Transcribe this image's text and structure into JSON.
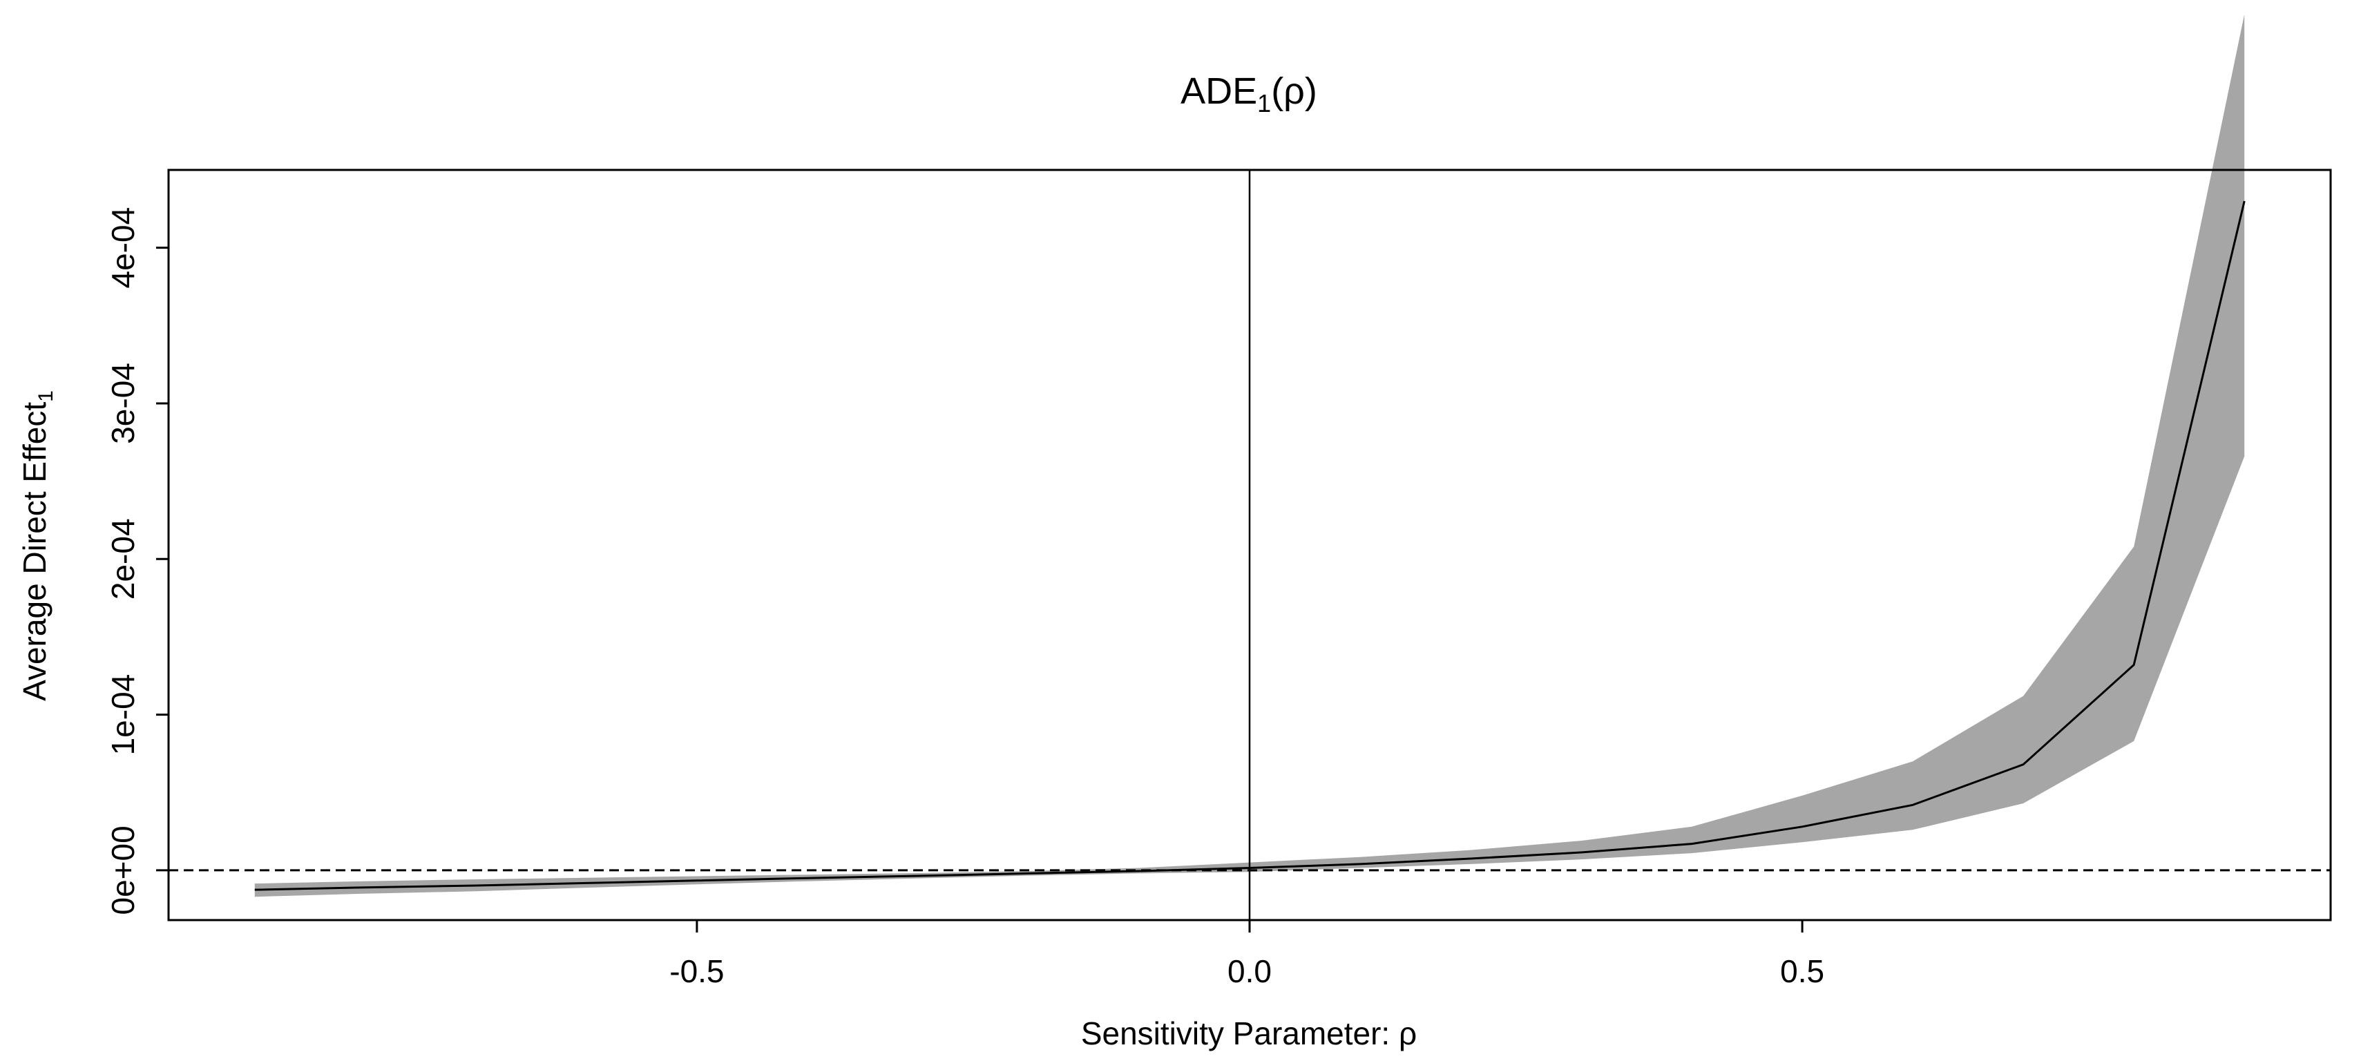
{
  "chart_data": {
    "type": "line",
    "title": "ADE",
    "title_subscript": "1",
    "title_suffix": "(ρ)",
    "xlabel": "Sensitivity Parameter: ρ",
    "ylabel": "Average Direct Effect",
    "ylabel_subscript": "1",
    "xlim": [
      -0.978,
      0.978
    ],
    "ylim": [
      -3.2e-05,
      0.00045
    ],
    "x_ticks": [
      -0.5,
      0.0,
      0.5
    ],
    "x_tick_labels": [
      "-0.5",
      "0.0",
      "0.5"
    ],
    "y_ticks": [
      0,
      0.0001,
      0.0002,
      0.0003,
      0.0004
    ],
    "y_tick_labels": [
      "0e+00",
      "1e-04",
      "2e-04",
      "3e-04",
      "4e-04"
    ],
    "reference_lines": {
      "vertical_x": 0,
      "horizontal_dashed_y": 0
    },
    "grid": false,
    "colors": {
      "line": "#000000",
      "band": "#a6a6a6"
    },
    "series": [
      {
        "type": "line_with_band",
        "x": [
          -0.9,
          -0.8,
          -0.7,
          -0.6,
          -0.5,
          -0.4,
          -0.3,
          -0.2,
          -0.1,
          0.0,
          0.1,
          0.2,
          0.3,
          0.4,
          0.5,
          0.6,
          0.7,
          0.8,
          0.9
        ],
        "y": [
          -1.25e-05,
          -1.1e-05,
          -9.8e-06,
          -8.2e-06,
          -6.6e-06,
          -5e-06,
          -3.6e-06,
          -2e-06,
          -5e-07,
          1.5e-06,
          4e-06,
          7.5e-06,
          1.15e-05,
          1.7e-05,
          2.8e-05,
          4.2e-05,
          6.8e-05,
          0.000132,
          0.00043
        ],
        "lower": [
          -1.7e-05,
          -1.5e-05,
          -1.35e-05,
          -1.12e-05,
          -9e-06,
          -7e-06,
          -5.2e-06,
          -3.4e-06,
          -2e-06,
          -1e-06,
          1.5e-06,
          4e-06,
          7e-06,
          1.1e-05,
          1.8e-05,
          2.6e-05,
          4.3e-05,
          8.3e-05,
          0.000266
        ],
        "upper": [
          -8.5e-06,
          -7e-06,
          -5.8e-06,
          -4.8e-06,
          -3.8e-06,
          -2.8e-06,
          -1.8e-06,
          -5e-07,
          1.5e-06,
          5e-06,
          8.5e-06,
          1.3e-05,
          1.9e-05,
          2.8e-05,
          4.8e-05,
          7e-05,
          0.000112,
          0.000208,
          0.00055
        ]
      }
    ]
  }
}
